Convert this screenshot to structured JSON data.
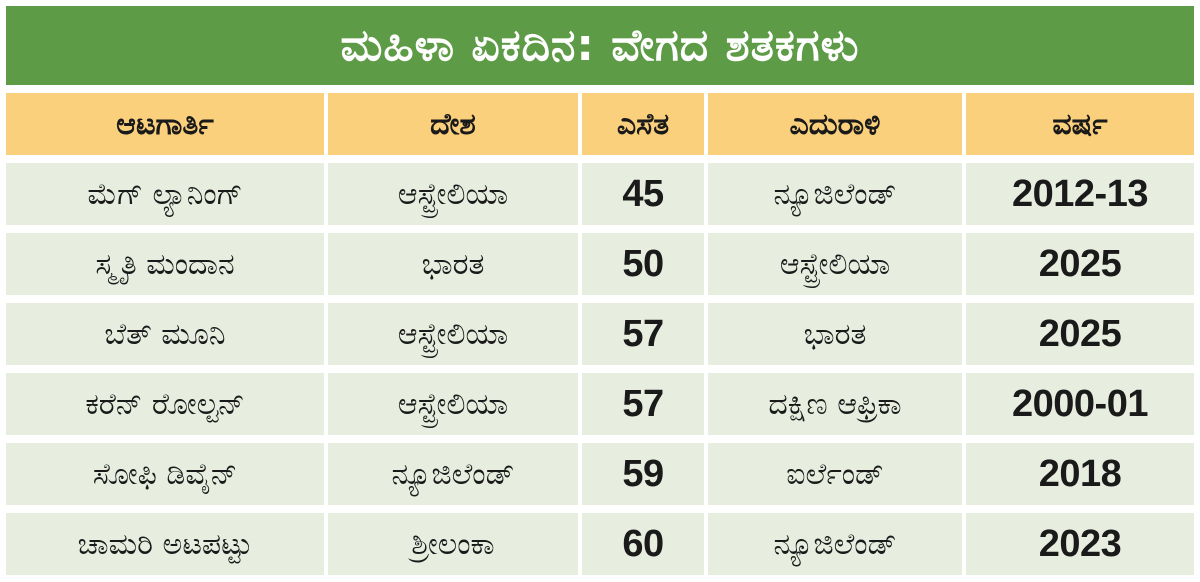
{
  "title": "ಮಹಿಳಾ ಏಕದಿನ: ವೇಗದ ಶತಕಗಳು",
  "columns": [
    "ಆಟಗಾರ್ತಿ",
    "ದೇಶ",
    "ಎಸೆತ",
    "ಎದುರಾಳಿ",
    "ವರ್ಷ"
  ],
  "rows": [
    [
      "ಮೆಗ್ ಲ್ಯಾನಿಂಗ್",
      "ಆಸ್ಟ್ರೇಲಿಯಾ",
      "45",
      "ನ್ಯೂಜಿಲೆಂಡ್",
      "2012-13"
    ],
    [
      "ಸ್ಮೃತಿ ಮಂದಾನ",
      "ಭಾರತ",
      "50",
      "ಆಸ್ಟ್ರೇಲಿಯಾ",
      "2025"
    ],
    [
      "ಬೆತ್ ಮೂನಿ",
      "ಆಸ್ಟ್ರೇಲಿಯಾ",
      "57",
      "ಭಾರತ",
      "2025"
    ],
    [
      "ಕರೆನ್ ರೋಲ್ಟನ್",
      "ಆಸ್ಟ್ರೇಲಿಯಾ",
      "57",
      "ದಕ್ಷಿಣ ಆಫ್ರಿಕಾ",
      "2000-01"
    ],
    [
      "ಸೋಫಿ ಡಿವೈನ್",
      "ನ್ಯೂಜಿಲೆಂಡ್",
      "59",
      "ಐರ್ಲೆಂಡ್",
      "2018"
    ],
    [
      "ಚಾಮರಿ ಅಟಪಟ್ಟು",
      "ಶ್ರೀಲಂಕಾ",
      "60",
      "ನ್ಯೂಜಿಲೆಂಡ್",
      "2023"
    ]
  ],
  "colors": {
    "title_background": "#5e9b47",
    "header_background": "#fbd07c",
    "row_background": "#e7eee0"
  }
}
